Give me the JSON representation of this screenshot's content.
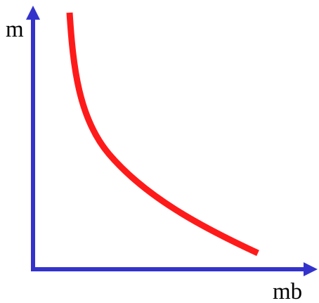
{
  "diagram": {
    "y_axis_label": "m",
    "x_axis_label": "mb",
    "colors": {
      "axes": "#3333cc",
      "curve": "#ff1a1a",
      "text": "#000000",
      "background": "#ffffff"
    },
    "curve_shape": "decreasing-convex"
  }
}
